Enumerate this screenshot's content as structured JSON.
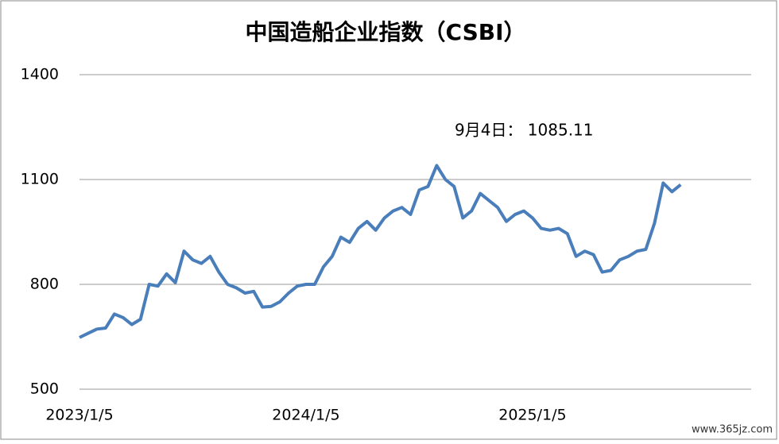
{
  "chart_data": {
    "type": "line",
    "title": "中国造船企业指数（CSBI）",
    "categories": [
      "2023/1/5",
      null,
      null,
      null,
      null,
      null,
      null,
      null,
      null,
      null,
      null,
      null,
      null,
      null,
      null,
      null,
      null,
      null,
      null,
      null,
      null,
      null,
      null,
      null,
      null,
      null,
      "2024/1/5",
      null,
      null,
      null,
      null,
      null,
      null,
      null,
      null,
      null,
      null,
      null,
      null,
      null,
      null,
      null,
      null,
      null,
      null,
      null,
      null,
      null,
      null,
      null,
      null,
      null,
      "2025/1/5",
      null,
      null,
      null,
      null,
      null,
      null,
      null,
      null,
      null,
      null,
      null,
      null,
      null,
      null,
      null,
      null,
      null
    ],
    "series": [
      {
        "name": "CSBI",
        "color": "#4a7ebb",
        "values": [
          648,
          660,
          672,
          675,
          715,
          705,
          685,
          700,
          800,
          795,
          830,
          805,
          895,
          870,
          860,
          880,
          835,
          800,
          790,
          775,
          780,
          735,
          737,
          750,
          775,
          795,
          800,
          800,
          850,
          880,
          935,
          920,
          960,
          980,
          955,
          990,
          1010,
          1020,
          1000,
          1070,
          1080,
          1140,
          1100,
          1080,
          990,
          1010,
          1060,
          1040,
          1020,
          980,
          1000,
          1010,
          990,
          960,
          955,
          960,
          945,
          880,
          895,
          885,
          835,
          840,
          870,
          880,
          895,
          900,
          975,
          1090,
          1065,
          1085.11
        ]
      }
    ],
    "ylim": [
      500,
      1400
    ],
    "yticks": [
      500,
      800,
      1100,
      1400
    ],
    "grid": true,
    "annotation": "9月4日：  1085.11",
    "watermark": "www.365jz.com"
  }
}
